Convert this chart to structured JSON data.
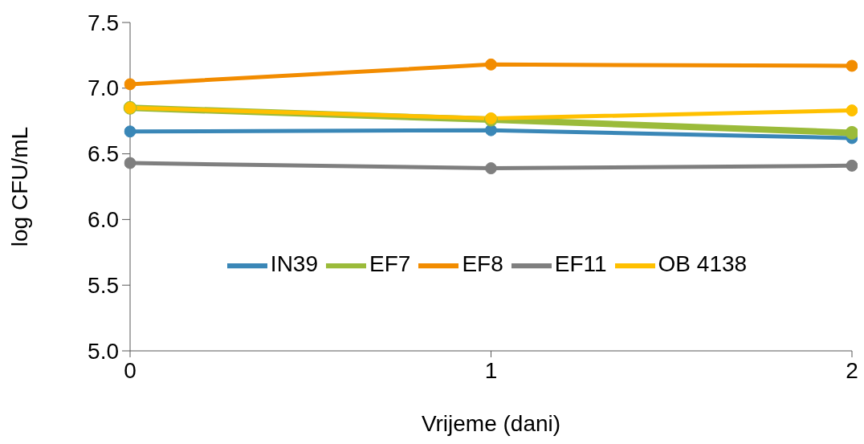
{
  "chart_data": {
    "type": "line",
    "xlabel": "Vrijeme (dani)",
    "ylabel": "log CFU/mL",
    "x": [
      0,
      1,
      2
    ],
    "series": [
      {
        "name": "IN39",
        "color": "#3a87b7",
        "values": [
          6.67,
          6.68,
          6.62
        ]
      },
      {
        "name": "EF7",
        "color": "#9bbb3a",
        "values": [
          6.85,
          6.76,
          6.66
        ]
      },
      {
        "name": "EF8",
        "color": "#f28c00",
        "values": [
          7.03,
          7.18,
          7.17
        ]
      },
      {
        "name": "EF11",
        "color": "#7f7f7f",
        "values": [
          6.43,
          6.39,
          6.41
        ]
      },
      {
        "name": "OB 4138",
        "color": "#ffc000",
        "values": [
          6.85,
          6.77,
          6.83
        ]
      }
    ],
    "xlim": [
      0,
      2
    ],
    "xticks": [
      0,
      1,
      2
    ],
    "ylim": [
      5.0,
      7.5
    ],
    "yticks": [
      {
        "value": 5.0,
        "label": "5.0"
      },
      {
        "value": 5.5,
        "label": "5.5"
      },
      {
        "value": 6.0,
        "label": "6.0"
      },
      {
        "value": 6.5,
        "label": "6.5"
      },
      {
        "value": 7.0,
        "label": "7.0"
      },
      {
        "value": 7.5,
        "label": "7.5"
      }
    ],
    "grid": false,
    "legend": "center",
    "marker": "circle",
    "line_style": "solid"
  }
}
